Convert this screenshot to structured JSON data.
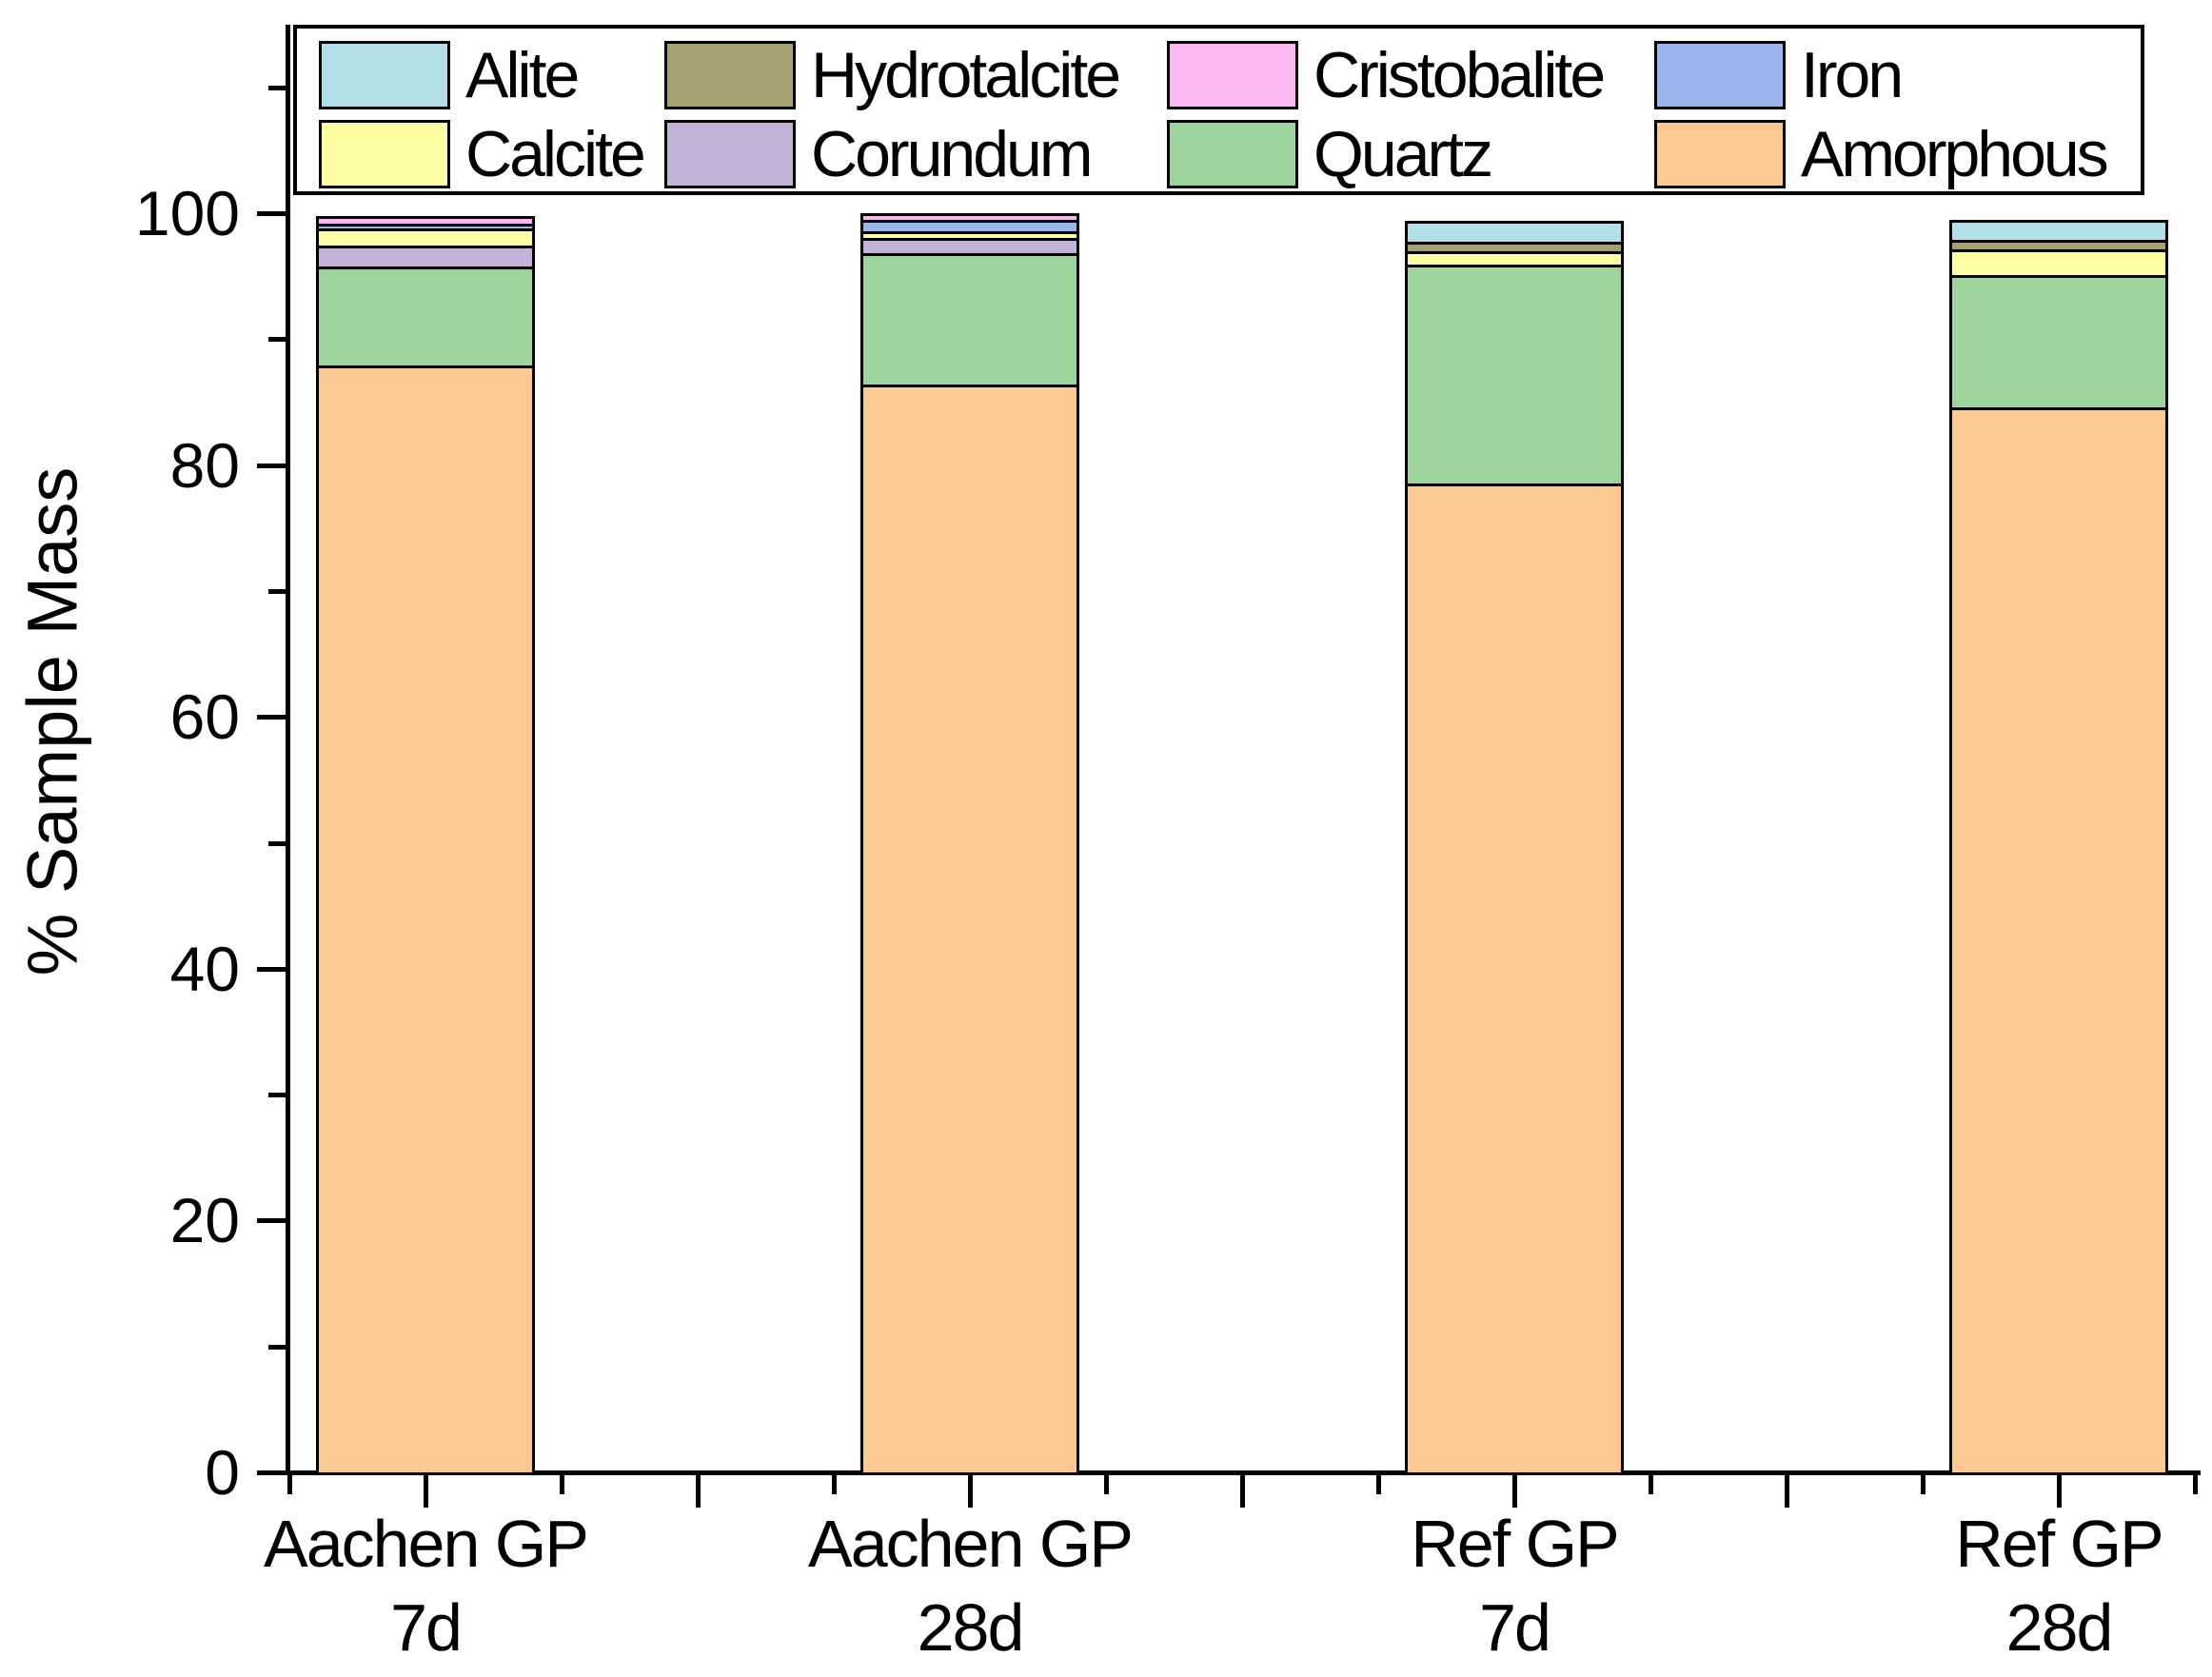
{
  "figure": {
    "background": "#ffffff",
    "axis_color": "#000000"
  },
  "chart_data": {
    "type": "bar",
    "stacked": true,
    "title": "",
    "xlabel": "",
    "ylabel": "% Sample Mass",
    "ylim": [
      0,
      115
    ],
    "yticks": [
      0,
      20,
      40,
      60,
      80,
      100
    ],
    "yminorticks": [
      10,
      30,
      50,
      70,
      90,
      110
    ],
    "grid": false,
    "legend_position": "top",
    "categories": [
      {
        "line1": "Aachen GP",
        "line2": "7d"
      },
      {
        "line1": "Aachen GP",
        "line2": "28d"
      },
      {
        "line1": "Ref GP",
        "line2": "7d"
      },
      {
        "line1": "Ref GP",
        "line2": "28d"
      }
    ],
    "series": [
      {
        "name": "Amorphous",
        "color": "#fcc991",
        "values": [
          87.9,
          86.4,
          78.5,
          84.6
        ]
      },
      {
        "name": "Quartz",
        "color": "#9dd49b",
        "values": [
          7.9,
          10.4,
          17.4,
          10.5
        ]
      },
      {
        "name": "Corundum",
        "color": "#c3b2d8",
        "values": [
          1.6,
          1.2,
          0,
          0
        ]
      },
      {
        "name": "Calcite",
        "color": "#fdfda1",
        "values": [
          1.4,
          0.6,
          1.1,
          2.0
        ]
      },
      {
        "name": "Iron",
        "color": "#9ab6eb",
        "values": [
          0.4,
          0.9,
          0,
          0
        ]
      },
      {
        "name": "Cristobalite",
        "color": "#fcb7f2",
        "values": [
          0.6,
          0.5,
          0,
          0
        ]
      },
      {
        "name": "Hydrotalcite",
        "color": "#a5a171",
        "values": [
          0,
          0,
          0.7,
          0.8
        ]
      },
      {
        "name": "Alite",
        "color": "#b3e0e8",
        "values": [
          0,
          0,
          1.7,
          1.6
        ]
      }
    ],
    "legend": {
      "rows": [
        [
          "Alite",
          "Hydrotalcite",
          "Cristobalite",
          "Iron"
        ],
        [
          "Calcite",
          "Corundum",
          "Quartz",
          "Amorphous"
        ]
      ]
    }
  }
}
